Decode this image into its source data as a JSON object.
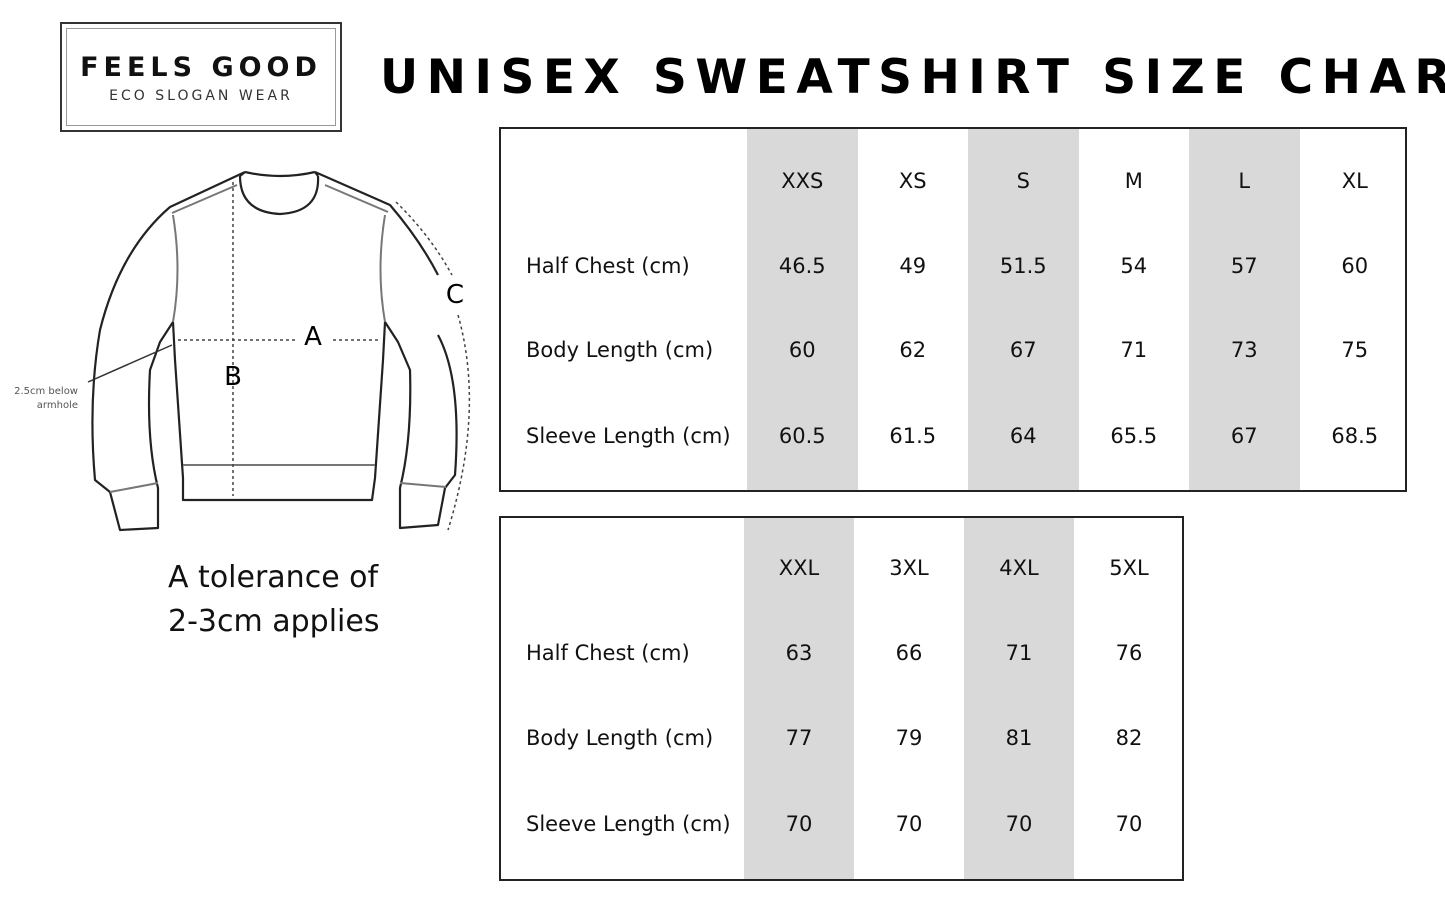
{
  "logo": {
    "brand": "FEELS GOOD",
    "tagline": "ECO SLOGAN WEAR"
  },
  "title": "UNISEX SWEATSHIRT SIZE CHART",
  "diagram": {
    "label_a": "A",
    "label_b": "B",
    "label_c": "C",
    "note_line1": "2.5cm below",
    "note_line2": "armhole"
  },
  "tolerance": {
    "line1": "A tolerance of",
    "line2": "2-3cm applies"
  },
  "row_labels": [
    "Half Chest (cm)",
    "Body Length (cm)",
    "Sleeve Length (cm)"
  ],
  "table1": {
    "sizes": [
      "XXS",
      "XS",
      "S",
      "M",
      "L",
      "XL"
    ],
    "half_chest": [
      "46.5",
      "49",
      "51.5",
      "54",
      "57",
      "60"
    ],
    "body_length": [
      "60",
      "62",
      "67",
      "71",
      "73",
      "75"
    ],
    "sleeve_length": [
      "60.5",
      "61.5",
      "64",
      "65.5",
      "67",
      "68.5"
    ]
  },
  "table2": {
    "sizes": [
      "XXL",
      "3XL",
      "4XL",
      "5XL"
    ],
    "half_chest": [
      "63",
      "66",
      "71",
      "76"
    ],
    "body_length": [
      "77",
      "79",
      "81",
      "82"
    ],
    "sleeve_length": [
      "70",
      "70",
      "70",
      "70"
    ]
  },
  "colors": {
    "shade": "#d9d9d9",
    "border": "#222222"
  }
}
